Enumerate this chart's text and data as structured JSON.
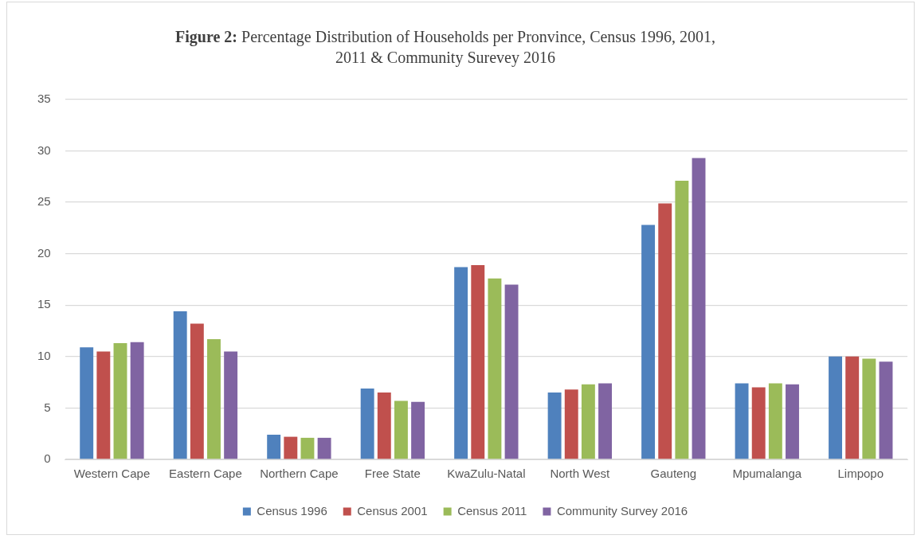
{
  "chart_data": {
    "type": "bar",
    "title": "Figure 2: Percentage Distribution of Households per Pronvince, Census 1996, 2001, 2011 & Community Surevey 2016",
    "categories": [
      "Western Cape",
      "Eastern Cape",
      "Northern Cape",
      "Free State",
      "KwaZulu-Natal",
      "North West",
      "Gauteng",
      "Mpumalanga",
      "Limpopo"
    ],
    "series": [
      {
        "name": "Census 1996",
        "color": "#4f81bd",
        "values": [
          10.9,
          14.4,
          2.4,
          6.9,
          18.7,
          6.5,
          22.8,
          7.4,
          10.0
        ]
      },
      {
        "name": "Census 2001",
        "color": "#c0504d",
        "values": [
          10.5,
          13.2,
          2.2,
          6.5,
          18.9,
          6.8,
          24.9,
          7.0,
          10.0
        ]
      },
      {
        "name": "Census 2011",
        "color": "#9bbb59",
        "values": [
          11.3,
          11.7,
          2.1,
          5.7,
          17.6,
          7.3,
          27.1,
          7.4,
          9.8
        ]
      },
      {
        "name": "Community Survey 2016",
        "color": "#8064a2",
        "values": [
          11.4,
          10.5,
          2.1,
          5.6,
          17.0,
          7.4,
          29.3,
          7.3,
          9.5
        ]
      }
    ],
    "ylim": [
      0,
      35
    ],
    "yticks": [
      0,
      5,
      10,
      15,
      20,
      25,
      30,
      35
    ],
    "grid": "y",
    "legend": "bottom"
  }
}
